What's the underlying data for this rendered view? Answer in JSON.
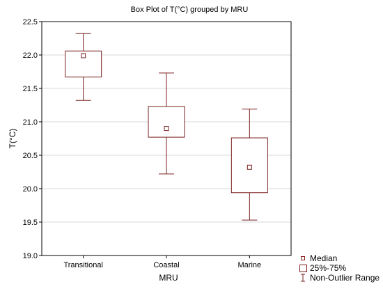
{
  "chart_data": {
    "type": "boxplot",
    "title": "Box Plot of T(°C) grouped by  MRU",
    "xlabel": "MRU",
    "ylabel": "T(°C)",
    "ylim": [
      19.0,
      22.5
    ],
    "yticks": [
      19.0,
      19.5,
      20.0,
      20.5,
      21.0,
      21.5,
      22.0,
      22.5
    ],
    "ytick_labels": [
      "19.0",
      "19.5",
      "20.0",
      "20.5",
      "21.0",
      "21.5",
      "22.0",
      "22.5"
    ],
    "grid": true,
    "categories": [
      "Transitional",
      "Coastal",
      "Marine"
    ],
    "boxes": [
      {
        "category": "Transitional",
        "min": 21.32,
        "q1": 21.67,
        "median": 21.99,
        "q3": 22.06,
        "max": 22.32
      },
      {
        "category": "Coastal",
        "min": 20.22,
        "q1": 20.77,
        "median": 20.9,
        "q3": 21.23,
        "max": 21.73
      },
      {
        "category": "Marine",
        "min": 19.53,
        "q1": 19.94,
        "median": 20.32,
        "q3": 20.76,
        "max": 21.19
      }
    ],
    "legend": {
      "position": "bottom-right",
      "items": [
        {
          "symbol": "median",
          "label": "Median"
        },
        {
          "symbol": "box",
          "label": "25%-75%"
        },
        {
          "symbol": "whisker",
          "label": "Non-Outlier Range"
        }
      ]
    },
    "colors": {
      "box": "#7a2020",
      "grid": "#d9d9d9",
      "frame": "#000000"
    }
  }
}
